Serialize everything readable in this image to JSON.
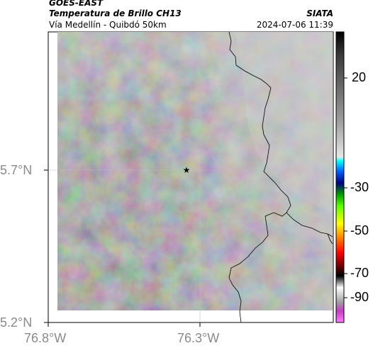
{
  "header": {
    "satellite": "GOES-EAST",
    "product": "Temperatura de Brillo CH13",
    "location": "Vía Medellín - Quibdó 50km",
    "org": "SIATA",
    "datetime": "2024-07-06 11:39"
  },
  "map": {
    "lat_ticks": [
      "5.7°N",
      "5.2°N"
    ],
    "lon_ticks": [
      "76.8°W",
      "76.3°W"
    ],
    "marker": "star",
    "background_color": "#6a6a6a",
    "cloud_color": "#b8b8b8",
    "border_color": "#000000"
  },
  "colorbar": {
    "ticks": [
      "20",
      "-30",
      "-50",
      "-70",
      "-90"
    ]
  }
}
